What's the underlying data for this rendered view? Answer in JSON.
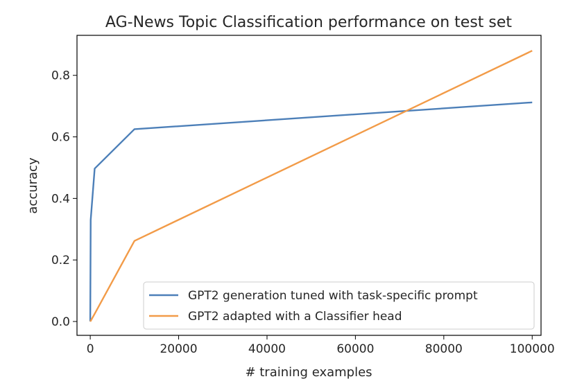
{
  "chart_data": {
    "type": "line",
    "title": "AG-News Topic Classification performance on test set",
    "xlabel": "# training examples",
    "ylabel": "accuracy",
    "xlim": [
      -3000,
      102000
    ],
    "ylim": [
      -0.045,
      0.93
    ],
    "xticks": [
      0,
      20000,
      40000,
      60000,
      80000,
      100000
    ],
    "xtick_labels": [
      "0",
      "20000",
      "40000",
      "60000",
      "80000",
      "100000"
    ],
    "yticks": [
      0.0,
      0.2,
      0.4,
      0.6,
      0.8
    ],
    "ytick_labels": [
      "0.0",
      "0.2",
      "0.4",
      "0.6",
      "0.8"
    ],
    "grid": false,
    "legend_position": "lower-right",
    "series": [
      {
        "name": "GPT2 generation tuned with task-specific prompt",
        "color": "#4c7fb8",
        "x": [
          0,
          100,
          1000,
          10000,
          100000
        ],
        "y": [
          0.0,
          0.33,
          0.497,
          0.625,
          0.712
        ]
      },
      {
        "name": "GPT2 adapted with a Classifier head",
        "color": "#f29b48",
        "x": [
          0,
          100,
          1000,
          10000,
          100000
        ],
        "y": [
          0.0,
          0.002,
          0.025,
          0.262,
          0.88
        ]
      }
    ]
  }
}
